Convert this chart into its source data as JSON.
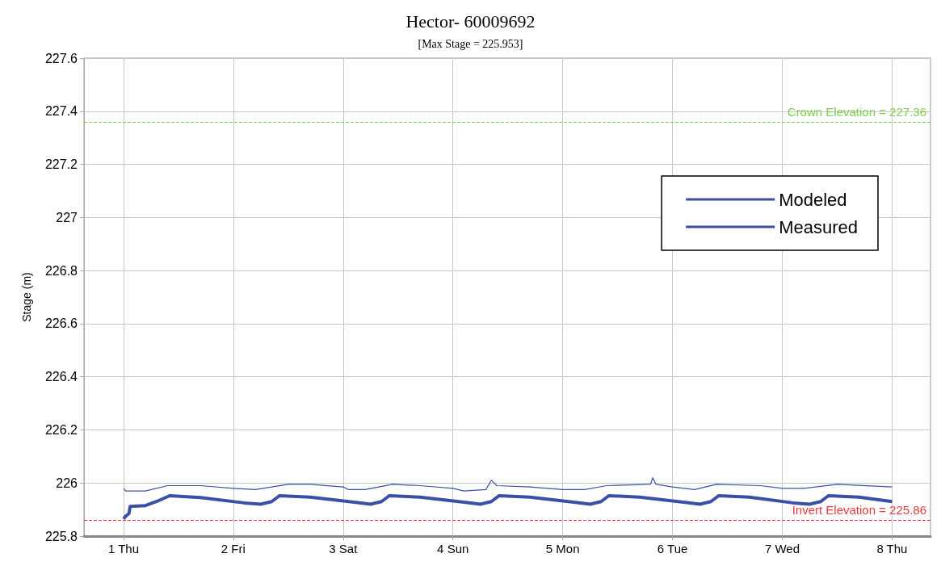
{
  "chart_data": {
    "type": "line",
    "title": "Hector- 60009692",
    "subtitle": "[Max Stage = 225.953]",
    "ylabel": "Stage (m)",
    "xlim": [
      0.64,
      8.35
    ],
    "xticks": [
      {
        "value": 1,
        "label": "1 Thu"
      },
      {
        "value": 2,
        "label": "2 Fri"
      },
      {
        "value": 3,
        "label": "3 Sat"
      },
      {
        "value": 4,
        "label": "4 Sun"
      },
      {
        "value": 5,
        "label": "5 Mon"
      },
      {
        "value": 6,
        "label": "6 Tue"
      },
      {
        "value": 7,
        "label": "7 Wed"
      },
      {
        "value": 8,
        "label": "8 Thu"
      }
    ],
    "ylim": [
      225.8,
      227.6
    ],
    "yticks": [
      225.8,
      226.0,
      226.2,
      226.4,
      226.6,
      226.8,
      227.0,
      227.2,
      227.4,
      227.6
    ],
    "grid": true,
    "legend": "top right",
    "marker": "none",
    "line_style": "solid",
    "series": [
      {
        "name": "Modeled",
        "color": "#3a4fa6",
        "x": [
          1.0,
          1.02,
          1.05,
          1.06,
          1.2,
          1.3,
          1.42,
          1.7,
          2.1,
          2.25,
          2.35,
          2.42,
          2.7,
          3.1,
          3.25,
          3.35,
          3.42,
          3.7,
          4.1,
          4.25,
          4.35,
          4.42,
          4.7,
          5.1,
          5.25,
          5.35,
          5.42,
          5.7,
          6.1,
          6.25,
          6.35,
          6.42,
          6.7,
          7.1,
          7.25,
          7.35,
          7.42,
          7.7,
          8.0
        ],
        "values": [
          225.865,
          225.875,
          225.885,
          225.912,
          225.915,
          225.93,
          225.952,
          225.945,
          225.925,
          225.92,
          225.93,
          225.952,
          225.947,
          225.928,
          225.92,
          225.93,
          225.952,
          225.947,
          225.928,
          225.92,
          225.93,
          225.952,
          225.947,
          225.928,
          225.92,
          225.93,
          225.952,
          225.947,
          225.928,
          225.92,
          225.93,
          225.952,
          225.947,
          225.925,
          225.92,
          225.93,
          225.952,
          225.947,
          225.93
        ]
      },
      {
        "name": "Measured",
        "color": "#3a4fa6",
        "x": [
          1.0,
          1.02,
          1.2,
          1.4,
          1.7,
          2.0,
          2.2,
          2.5,
          2.7,
          3.0,
          3.05,
          3.2,
          3.45,
          3.7,
          4.0,
          4.1,
          4.3,
          4.35,
          4.4,
          4.7,
          5.0,
          5.2,
          5.4,
          5.8,
          5.82,
          5.85,
          6.0,
          6.2,
          6.4,
          6.8,
          7.0,
          7.2,
          7.5,
          8.0
        ],
        "values": [
          225.98,
          225.97,
          225.97,
          225.99,
          225.99,
          225.98,
          225.975,
          225.995,
          225.995,
          225.985,
          225.975,
          225.975,
          225.995,
          225.99,
          225.98,
          225.97,
          225.975,
          226.01,
          225.99,
          225.985,
          225.975,
          225.975,
          225.99,
          225.995,
          226.02,
          225.995,
          225.985,
          225.975,
          225.995,
          225.99,
          225.98,
          225.98,
          225.995,
          225.985
        ]
      }
    ],
    "ref_lines": [
      {
        "axis": "y",
        "value": 227.36,
        "label": "Crown Elevation = 227.36",
        "color": "#7ccf4a",
        "line_style": "dashed"
      },
      {
        "axis": "y",
        "value": 225.86,
        "label": "Invert Elevation = 225.86",
        "color": "#e8383d",
        "line_style": "dashed"
      }
    ]
  }
}
